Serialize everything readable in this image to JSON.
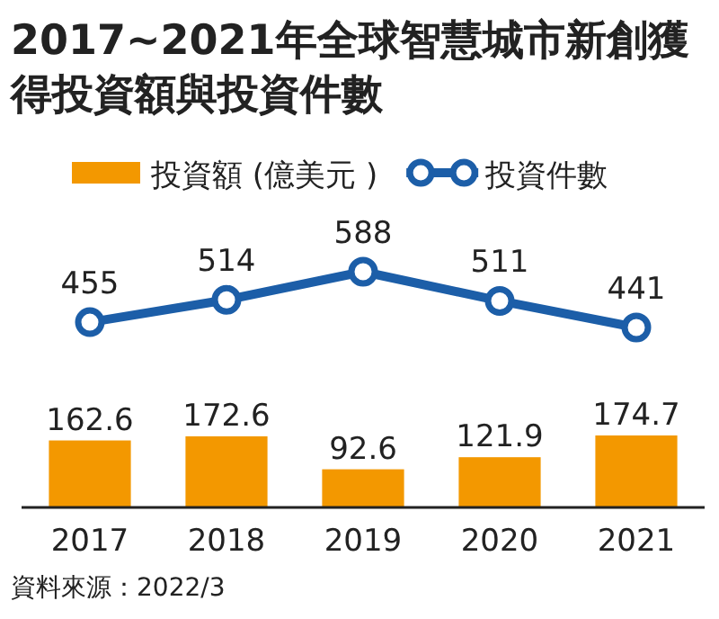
{
  "chart_data": [
    {
      "type": "line",
      "title": "2017~2021年全球智慧城市新創獲得投資額與投資件數",
      "categories": [
        "2017",
        "2018",
        "2019",
        "2020",
        "2021"
      ],
      "series": [
        {
          "name": "投資件數",
          "color": "#1c5ea8",
          "values": [
            455,
            514,
            588,
            511,
            441
          ]
        }
      ],
      "data_labels": true,
      "legend": "top",
      "marker": "circle",
      "line_style": "solid",
      "tick_labels": false
    },
    {
      "type": "bar",
      "categories": [
        "2017",
        "2018",
        "2019",
        "2020",
        "2021"
      ],
      "series": [
        {
          "name": "投資額 (億美元 )",
          "color": "#f39800",
          "values": [
            162.6,
            172.6,
            92.6,
            121.9,
            174.7
          ]
        }
      ],
      "data_labels": true,
      "legend": "top",
      "annotations": [
        "資料來源：2022/3"
      ]
    }
  ]
}
